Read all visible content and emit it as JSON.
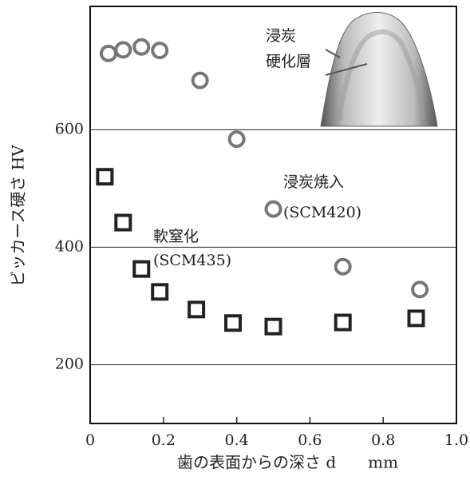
{
  "chart_data": {
    "type": "scatter",
    "xlabel": "歯の表面からの深さ d　　mm",
    "ylabel": "ビッカース硬さ HV",
    "xlim": [
      0,
      1
    ],
    "xticks": [
      0,
      0.2,
      0.4,
      0.6,
      0.8,
      {
        "value": 1,
        "label": "1.0"
      }
    ],
    "ylim": [
      100,
      810
    ],
    "yticks": [
      200,
      400,
      600
    ],
    "grid": true,
    "series": [
      {
        "marker": "circle",
        "color": "#777777",
        "x": [
          0.05,
          0.09,
          0.14,
          0.19,
          0.3,
          0.4,
          0.5,
          0.69,
          0.9
        ],
        "values": [
          730,
          736,
          741,
          735,
          684,
          584,
          465,
          367,
          328
        ]
      },
      {
        "marker": "square",
        "color": "#222222",
        "x": [
          0.04,
          0.09,
          0.14,
          0.19,
          0.29,
          0.39,
          0.5,
          0.69,
          0.89
        ],
        "values": [
          520,
          442,
          363,
          324,
          294,
          271,
          265,
          272,
          279
        ]
      }
    ],
    "annotations": [
      "浸炭焼入",
      "(SCM420)",
      "軟窒化",
      "(SCM435)",
      "浸炭",
      "硬化層"
    ]
  }
}
